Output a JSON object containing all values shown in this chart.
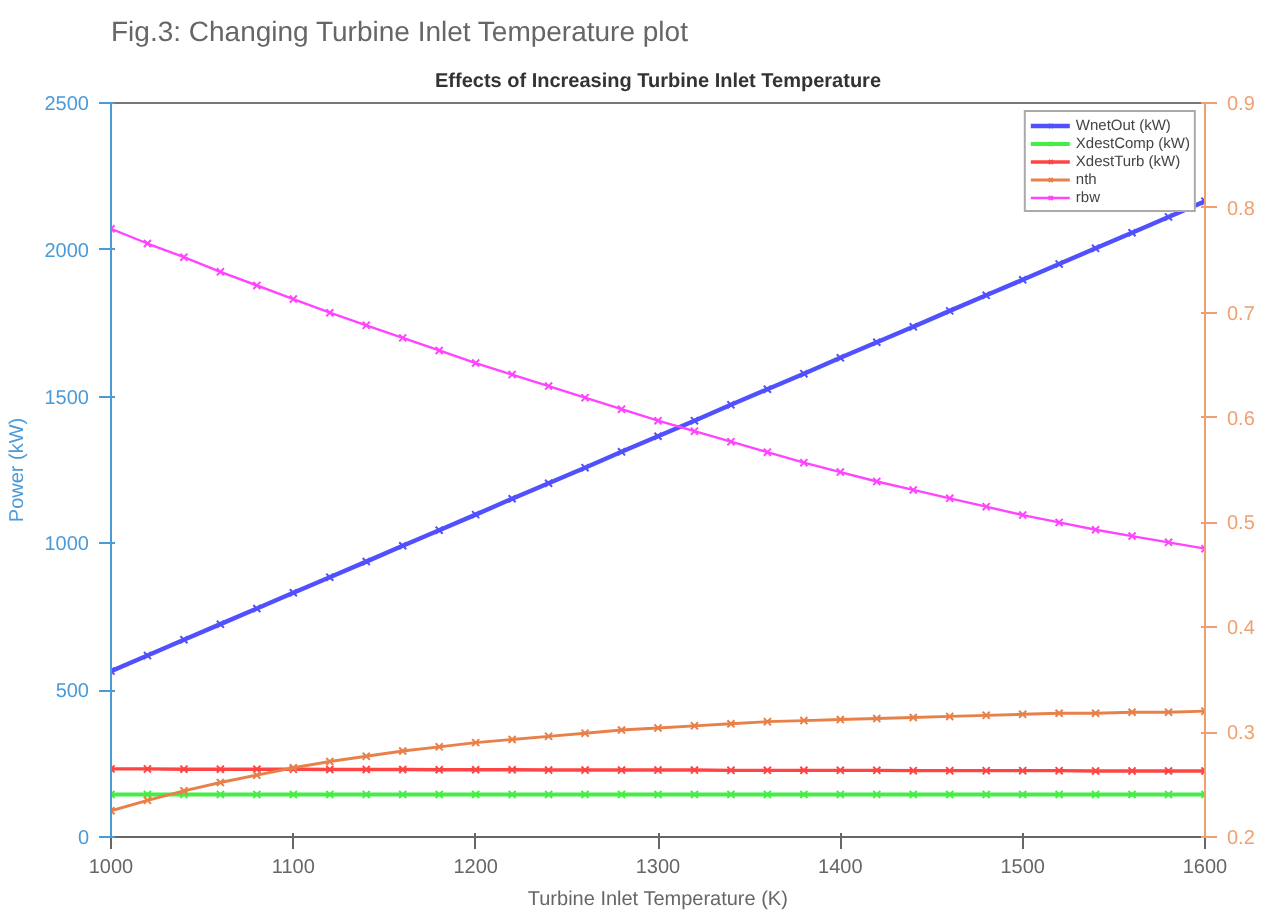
{
  "chart_data": {
    "type": "line",
    "title": "Effects of Increasing Turbine Inlet Temperature",
    "annotations": [
      "Fig.3: Changing Turbine Inlet Temperature plot"
    ],
    "xlabel": "Turbine Inlet Temperature (K)",
    "ylabel": "Power (kW)",
    "x": [
      1000,
      1020,
      1040,
      1060,
      1080,
      1100,
      1120,
      1140,
      1160,
      1180,
      1200,
      1220,
      1240,
      1260,
      1280,
      1300,
      1320,
      1340,
      1360,
      1380,
      1400,
      1420,
      1440,
      1460,
      1480,
      1500,
      1520,
      1540,
      1560,
      1580,
      1600
    ],
    "xlim": [
      1000,
      1600
    ],
    "xticks": [
      1000,
      1100,
      1200,
      1300,
      1400,
      1500,
      1600
    ],
    "ylim": [
      0,
      2500
    ],
    "yticks": [
      0,
      500,
      1000,
      1500,
      2000,
      2500
    ],
    "y2lim": [
      0.2,
      0.9
    ],
    "y2ticks": [
      0.2,
      0.3,
      0.4,
      0.5,
      0.6,
      0.7,
      0.8,
      0.9
    ],
    "grid": false,
    "legend": "top right",
    "marker": "cross",
    "line_style": "solid",
    "series": [
      {
        "name": "WnetOut (kW)",
        "color": "#5050ff",
        "values": [
          565,
          618,
          672,
          725,
          778,
          832,
          885,
          938,
          992,
          1045,
          1098,
          1152,
          1205,
          1258,
          1312,
          1365,
          1418,
          1472,
          1525,
          1578,
          1632,
          1685,
          1738,
          1792,
          1845,
          1898,
          1952,
          2005,
          2058,
          2112,
          2165
        ]
      },
      {
        "name": "XdestComp (kW)",
        "color": "#44ee44",
        "values": [
          145,
          145,
          145,
          145,
          145,
          145,
          145,
          145,
          145,
          145,
          145,
          145,
          145,
          145,
          145,
          145,
          145,
          145,
          145,
          145,
          145,
          145,
          145,
          145,
          145,
          145,
          145,
          145,
          145,
          145,
          145
        ]
      },
      {
        "name": "XdestTurb (kW)",
        "color": "#ff4444",
        "values": [
          232,
          232,
          231,
          231,
          231,
          231,
          230,
          230,
          230,
          229,
          229,
          229,
          228,
          228,
          228,
          228,
          228,
          227,
          227,
          227,
          227,
          227,
          226,
          226,
          226,
          226,
          226,
          225,
          225,
          225,
          225
        ]
      },
      {
        "name": "nth",
        "color": "#e8804a",
        "axis": "y2",
        "values": [
          0.225,
          0.235,
          0.244,
          0.252,
          0.259,
          0.266,
          0.272,
          0.277,
          0.282,
          0.286,
          0.29,
          0.293,
          0.296,
          0.299,
          0.302,
          0.304,
          0.306,
          0.308,
          0.31,
          0.311,
          0.312,
          0.313,
          0.314,
          0.315,
          0.316,
          0.317,
          0.318,
          0.318,
          0.319,
          0.319,
          0.32
        ]
      },
      {
        "name": "rbw",
        "color": "#ff44ff",
        "axis": "y2",
        "values": [
          0.78,
          0.766,
          0.753,
          0.739,
          0.726,
          0.713,
          0.7,
          0.688,
          0.676,
          0.664,
          0.652,
          0.641,
          0.63,
          0.619,
          0.608,
          0.597,
          0.587,
          0.577,
          0.567,
          0.557,
          0.548,
          0.539,
          0.531,
          0.523,
          0.515,
          0.507,
          0.5,
          0.493,
          0.487,
          0.481,
          0.475
        ]
      }
    ]
  }
}
